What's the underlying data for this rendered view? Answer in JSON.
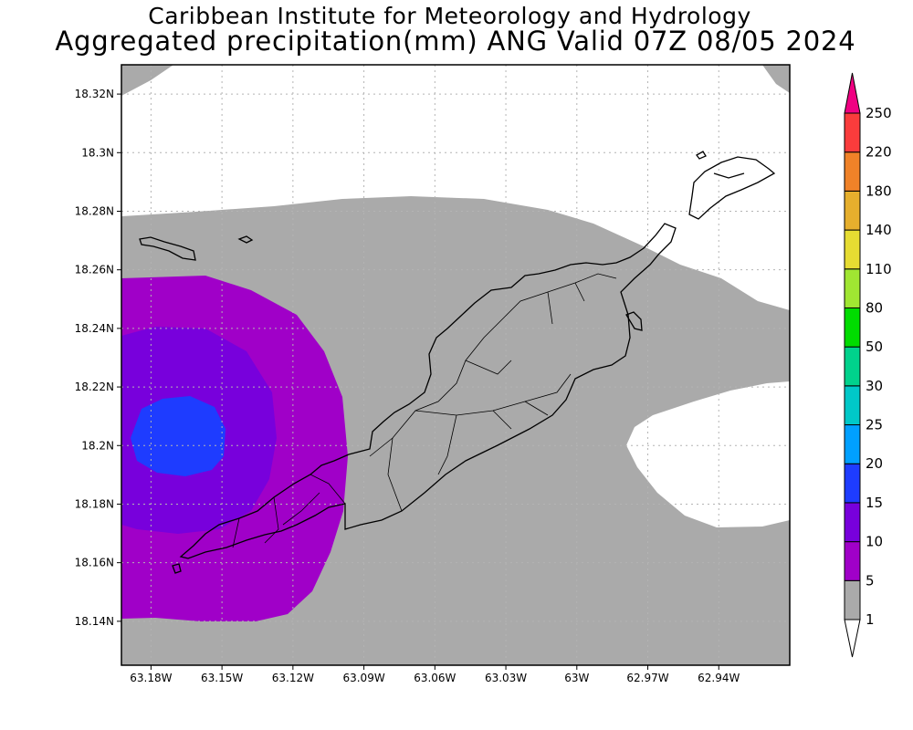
{
  "title": {
    "line1": "Caribbean Institute for Meteorology and Hydrology",
    "line2": "Aggregated precipitation(mm) ANG Valid 07Z 08/05 2024"
  },
  "map": {
    "lat_ticks": [
      "18.32N",
      "18.3N",
      "18.28N",
      "18.26N",
      "18.24N",
      "18.22N",
      "18.2N",
      "18.18N",
      "18.16N",
      "18.14N"
    ],
    "lon_ticks": [
      "63.18W",
      "63.15W",
      "63.12W",
      "63.09W",
      "63.06W",
      "63.03W",
      "63W",
      "62.97W",
      "62.94W"
    ],
    "lat_range": [
      18.125,
      18.33
    ],
    "lon_range": [
      -63.1925,
      -62.91
    ],
    "fill_colors": {
      "ocean_no_rain": "#ffffff",
      "band_1_5": "#aaaaaa",
      "band_5_10": "#a000c8",
      "band_10_15": "#7800dc",
      "band_15_20": "#1e3cff",
      "coastline": "#000000",
      "grid": "#b4b4b4"
    }
  },
  "colorbar": {
    "labels": [
      "1",
      "5",
      "10",
      "15",
      "20",
      "25",
      "30",
      "50",
      "80",
      "110",
      "140",
      "180",
      "220",
      "250"
    ],
    "colors": [
      "#aaaaaa",
      "#a000c8",
      "#7800dc",
      "#1e3cff",
      "#00a0ff",
      "#00c8c8",
      "#00d28c",
      "#00dc00",
      "#a0e632",
      "#e6dc32",
      "#e6af2d",
      "#f08228",
      "#fa3c3c",
      "#f00082"
    ]
  }
}
